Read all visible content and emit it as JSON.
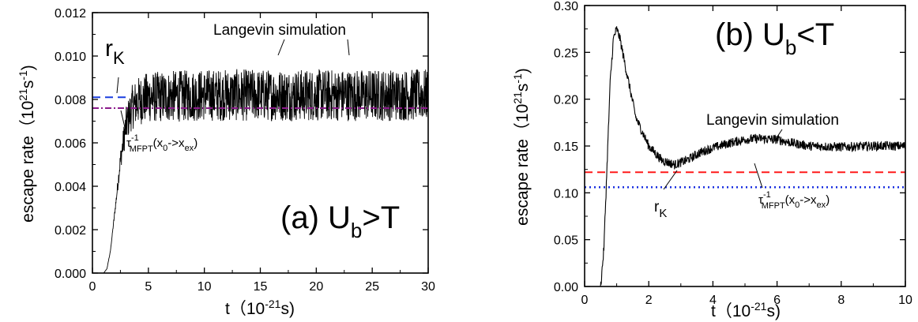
{
  "chart_data": [
    {
      "type": "line",
      "panel": "(a)",
      "xlabel": "t",
      "xunit": "10^-21 s",
      "ylabel": "escape rate",
      "yunit": "10^21 s^-1",
      "xlim": [
        0,
        30
      ],
      "ylim": [
        0,
        0.012
      ],
      "xticks": [
        "0",
        "5",
        "10",
        "15",
        "20",
        "25",
        "30"
      ],
      "yticks": [
        "0.000",
        "0.002",
        "0.004",
        "0.006",
        "0.008",
        "0.010",
        "0.012"
      ],
      "panel_label": {
        "prefix": "(a) U",
        "sub": "b",
        "suffix": ">T"
      },
      "series": [
        {
          "name": "Langevin simulation",
          "color": "#000000",
          "style": "noisy-solid",
          "points": [
            [
              0,
              0
            ],
            [
              1.0,
              0
            ],
            [
              1.3,
              0.0002
            ],
            [
              1.6,
              0.001
            ],
            [
              2.0,
              0.0028
            ],
            [
              2.5,
              0.0052
            ],
            [
              3.0,
              0.0068
            ],
            [
              3.5,
              0.0076
            ],
            [
              4.0,
              0.0079
            ],
            [
              5.0,
              0.0081
            ],
            [
              10.0,
              0.0082
            ],
            [
              15.0,
              0.0082
            ],
            [
              20.0,
              0.0082
            ],
            [
              25.0,
              0.0082
            ],
            [
              30.0,
              0.0082
            ]
          ],
          "noise_amplitude": 0.0012
        },
        {
          "name": "r_K",
          "color": "#1a3fe0",
          "style": "dashed",
          "value": 0.0081,
          "x_range": [
            0,
            3
          ]
        },
        {
          "name": "tau_MFPT^-1(x0->xex)",
          "color": "#8b1a8b",
          "style": "dash-dot",
          "value": 0.0076,
          "x_range": [
            0,
            30
          ]
        }
      ],
      "annotations": {
        "langevin": "Langevin simulation",
        "rk": {
          "main": "r",
          "sub": "K"
        },
        "tau": {
          "main": "τ",
          "sup": "-1",
          "sub": "MFPT",
          "args": "(x",
          "arg_sub1": "0",
          "arrow": "->x",
          "arg_sub2": "ex",
          "close": ")"
        }
      }
    },
    {
      "type": "line",
      "panel": "(b)",
      "xlabel": "t",
      "xunit": "10^-21 s",
      "ylabel": "escape rate",
      "yunit": "10^21 s^-1",
      "xlim": [
        0,
        10
      ],
      "ylim": [
        0,
        0.3
      ],
      "xticks": [
        "0",
        "2",
        "4",
        "6",
        "8",
        "10"
      ],
      "yticks": [
        "0.00",
        "0.05",
        "0.10",
        "0.15",
        "0.20",
        "0.25",
        "0.30"
      ],
      "panel_label": {
        "prefix": "(b) U",
        "sub": "b",
        "suffix": "<T"
      },
      "series": [
        {
          "name": "Langevin simulation",
          "color": "#000000",
          "style": "noisy-solid",
          "points": [
            [
              0.3,
              0
            ],
            [
              0.5,
              0
            ],
            [
              0.6,
              0.04
            ],
            [
              0.7,
              0.13
            ],
            [
              0.8,
              0.22
            ],
            [
              0.9,
              0.265
            ],
            [
              1.0,
              0.275
            ],
            [
              1.1,
              0.265
            ],
            [
              1.3,
              0.23
            ],
            [
              1.6,
              0.18
            ],
            [
              2.0,
              0.15
            ],
            [
              2.4,
              0.135
            ],
            [
              2.8,
              0.13
            ],
            [
              3.2,
              0.135
            ],
            [
              3.6,
              0.143
            ],
            [
              4.0,
              0.148
            ],
            [
              4.5,
              0.153
            ],
            [
              5.0,
              0.157
            ],
            [
              5.5,
              0.158
            ],
            [
              6.0,
              0.157
            ],
            [
              6.5,
              0.153
            ],
            [
              7.0,
              0.15
            ],
            [
              8.0,
              0.149
            ],
            [
              9.0,
              0.15
            ],
            [
              10.0,
              0.15
            ]
          ],
          "noise_amplitude": 0.005
        },
        {
          "name": "r_K",
          "color": "#ff1a1a",
          "style": "dashed",
          "value": 0.122,
          "x_range": [
            0,
            10
          ]
        },
        {
          "name": "tau_MFPT^-1(x0->xex)",
          "color": "#1a2fe0",
          "style": "dotted",
          "value": 0.106,
          "x_range": [
            0,
            10
          ]
        }
      ],
      "annotations": {
        "langevin": "Langevin simulation",
        "rk": {
          "main": "r",
          "sub": "K"
        },
        "tau": {
          "main": "τ",
          "sup": "-1",
          "sub": "MFPT",
          "args": "(x",
          "arg_sub1": "0",
          "arrow": "->x",
          "arg_sub2": "ex",
          "close": ")"
        }
      }
    }
  ]
}
